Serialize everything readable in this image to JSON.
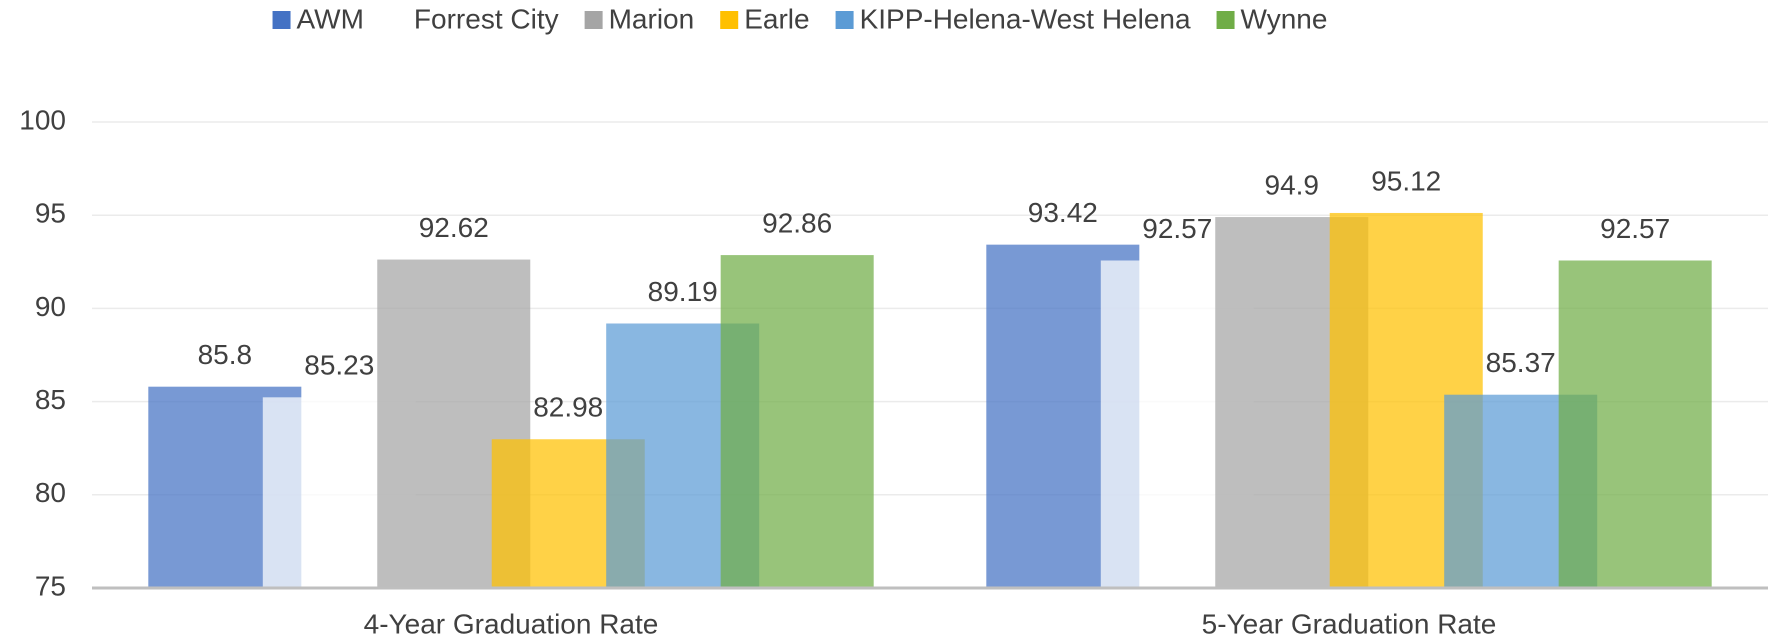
{
  "chart_data": {
    "type": "bar",
    "categories": [
      "4-Year Graduation Rate",
      "5-Year Graduation Rate"
    ],
    "series": [
      {
        "name": "AWM",
        "color": "#4472c4",
        "values": [
          85.8,
          93.42
        ]
      },
      {
        "name": "Forrest City",
        "color": "#ffffff",
        "values": [
          85.23,
          92.57
        ]
      },
      {
        "name": "Marion",
        "color": "#a5a5a5",
        "values": [
          92.62,
          94.9
        ]
      },
      {
        "name": "Earle",
        "color": "#ffc000",
        "values": [
          82.98,
          95.12
        ]
      },
      {
        "name": "KIPP-Helena-West Helena",
        "color": "#5b9bd5",
        "values": [
          89.19,
          85.37
        ]
      },
      {
        "name": "Wynne",
        "color": "#70ad47",
        "values": [
          92.86,
          92.57
        ]
      }
    ],
    "ylim": [
      75,
      100
    ],
    "yticks": [
      75,
      80,
      85,
      90,
      95,
      100
    ],
    "grid": true,
    "legend": "top"
  }
}
